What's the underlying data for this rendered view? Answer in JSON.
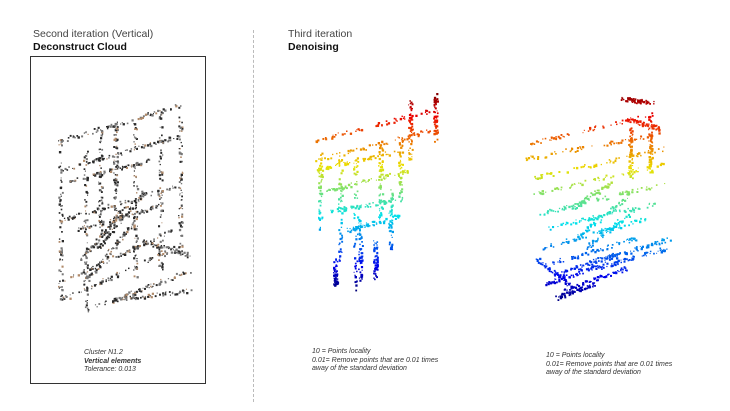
{
  "left_panel": {
    "subtitle": "Second iteration (Vertical)",
    "title": "Deconstruct Cloud",
    "caption": {
      "line1": "Cluster N1.2",
      "line2": "Vertical elements",
      "line3": "Tolerance: 0.013"
    }
  },
  "right_panel": {
    "subtitle": "Third iteration",
    "title": "Denoising",
    "caption_a": {
      "line1": "10 = Points locality",
      "line2": "0.01= Remove points that are 0.01 times",
      "line3": "away of the standard deviation"
    },
    "caption_b": {
      "line1": "10 = Points locality",
      "line2": "0.01= Remove points that are 0.01 times",
      "line3": "away of the standard deviation"
    }
  },
  "colors": {
    "frame": "#333333",
    "divider": "#bbbbbb",
    "point_dark": "#2a2a2a",
    "point_warm": "#b08a6a",
    "gradient_top": "#c00000",
    "gradient_mid": "#40e040",
    "gradient_bottom": "#1010c0"
  }
}
